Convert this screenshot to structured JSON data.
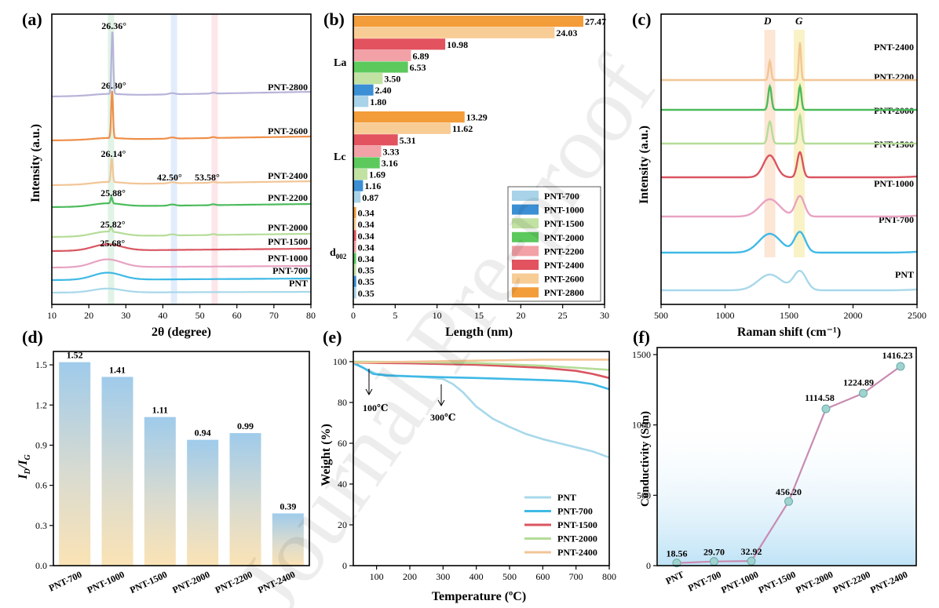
{
  "watermark": "Journal Pre-proof",
  "chart_data": [
    {
      "panel": "(a)",
      "type": "line",
      "title": "",
      "xlabel": "2θ (degree)",
      "ylabel": "Intensity (a.u.)",
      "xlim": [
        10,
        80
      ],
      "xticks": [
        10,
        20,
        30,
        40,
        50,
        60,
        70,
        80
      ],
      "series": [
        {
          "name": "PNT",
          "color": "#a8d8ea",
          "peak_label": ""
        },
        {
          "name": "PNT-700",
          "color": "#3fb9e6",
          "peak_label": ""
        },
        {
          "name": "PNT-1000",
          "color": "#e8a3c2",
          "peak_label": ""
        },
        {
          "name": "PNT-1500",
          "color": "#d95560",
          "peak_label": "25.68°"
        },
        {
          "name": "PNT-2000",
          "color": "#b5dc98",
          "peak_label": "25.82°"
        },
        {
          "name": "PNT-2200",
          "color": "#4cbb5c",
          "peak_label": "25.88°"
        },
        {
          "name": "PNT-2400",
          "color": "#f2c596",
          "peak_label": "26.14°"
        },
        {
          "name": "PNT-2600",
          "color": "#ef8f4a",
          "peak_label": "26.30°"
        },
        {
          "name": "PNT-2800",
          "color": "#b7b3d9",
          "peak_label": "26.36°"
        }
      ],
      "annotations": [
        "42.50°",
        "53.58°"
      ],
      "highlight_bands_deg": [
        26,
        43,
        54
      ]
    },
    {
      "panel": "(b)",
      "type": "bar",
      "orientation": "horizontal",
      "xlabel": "Length (nm)",
      "ylabel": "",
      "xlim": [
        0,
        30
      ],
      "xticks": [
        0,
        5,
        10,
        15,
        20,
        25,
        30
      ],
      "groups": [
        "La",
        "Lc",
        "d002"
      ],
      "group_labels": {
        "La": "La",
        "Lc": "Lc",
        "d_main": "d",
        "d_sub": "002"
      },
      "series": [
        {
          "name": "PNT-700",
          "color": "#a8d3e8",
          "values": [
            1.8,
            0.87,
            0.35
          ],
          "labels": [
            "1.80",
            "0.87",
            "0.35"
          ]
        },
        {
          "name": "PNT-1000",
          "color": "#3b8fd4",
          "values": [
            2.4,
            1.16,
            0.35
          ],
          "labels": [
            "2.40",
            "1.16",
            "0.35"
          ]
        },
        {
          "name": "PNT-1500",
          "color": "#c2e2a3",
          "values": [
            3.5,
            1.69,
            0.35
          ],
          "labels": [
            "3.50",
            "1.69",
            "0.35"
          ]
        },
        {
          "name": "PNT-2000",
          "color": "#5cc95c",
          "values": [
            6.53,
            3.16,
            0.34
          ],
          "labels": [
            "6.53",
            "3.16",
            "0.34"
          ]
        },
        {
          "name": "PNT-2200",
          "color": "#f2a1a6",
          "values": [
            6.89,
            3.33,
            0.34
          ],
          "labels": [
            "6.89",
            "3.33",
            "0.34"
          ]
        },
        {
          "name": "PNT-2400",
          "color": "#e2525f",
          "values": [
            10.98,
            5.31,
            0.34
          ],
          "labels": [
            "10.98",
            "5.31",
            "0.34"
          ]
        },
        {
          "name": "PNT-2600",
          "color": "#f8cc95",
          "values": [
            24.03,
            11.62,
            0.34
          ],
          "labels": [
            "24.03",
            "11.62",
            "0.34"
          ]
        },
        {
          "name": "PNT-2800",
          "color": "#f39c3a",
          "values": [
            27.47,
            13.29,
            0.34
          ],
          "labels": [
            "27.47",
            "13.29",
            "0.34"
          ]
        }
      ],
      "legend": "bottom-right"
    },
    {
      "panel": "(c)",
      "type": "line",
      "xlabel": "Raman shift (cm⁻¹)",
      "ylabel": "Intensity (a.u.)",
      "xlim": [
        500,
        2500
      ],
      "xticks": [
        500,
        1000,
        1500,
        2000,
        2500
      ],
      "band_labels": [
        "D",
        "G"
      ],
      "series": [
        {
          "name": "PNT",
          "color": "#a8d8ea"
        },
        {
          "name": "PNT-700",
          "color": "#3fb9e6"
        },
        {
          "name": "PNT-1000",
          "color": "#e8a3c2"
        },
        {
          "name": "PNT-1500",
          "color": "#d95560"
        },
        {
          "name": "PNT-2000",
          "color": "#b5dc98"
        },
        {
          "name": "PNT-2200",
          "color": "#4cbb5c"
        },
        {
          "name": "PNT-2400",
          "color": "#f2c596"
        }
      ]
    },
    {
      "panel": "(d)",
      "type": "bar",
      "xlabel": "",
      "ylabel_main": "I",
      "ylabel_sub1": "D",
      "ylabel_slash": "/I",
      "ylabel_sub2": "G",
      "ylim": [
        0,
        1.6
      ],
      "yticks": [
        "0.0",
        "0.3",
        "0.6",
        "0.9",
        "1.2",
        "1.5"
      ],
      "categories": [
        "PNT-700",
        "PNT-1000",
        "PNT-1500",
        "PNT-2000",
        "PNT-2200",
        "PNT-2400"
      ],
      "values": [
        1.52,
        1.41,
        1.11,
        0.94,
        0.99,
        0.39
      ],
      "labels": [
        "1.52",
        "1.41",
        "1.11",
        "0.94",
        "0.99",
        "0.39"
      ]
    },
    {
      "panel": "(e)",
      "type": "line",
      "xlabel": "Temperature (ºC)",
      "ylabel": "Weight (%)",
      "xlim": [
        30,
        800
      ],
      "xticks": [
        100,
        200,
        300,
        400,
        500,
        600,
        700,
        800
      ],
      "ylim": [
        0,
        105
      ],
      "yticks": [
        0,
        20,
        40,
        60,
        80,
        100
      ],
      "annotations": [
        "100℃",
        "300℃"
      ],
      "series": [
        {
          "name": "PNT",
          "color": "#a8d8ea",
          "x": [
            30,
            60,
            100,
            150,
            200,
            250,
            300,
            330,
            360,
            400,
            450,
            500,
            550,
            600,
            650,
            700,
            750,
            800
          ],
          "y": [
            99,
            97,
            94,
            93.3,
            92.8,
            92.3,
            91.5,
            89,
            85,
            78,
            72,
            68,
            64.5,
            62,
            60,
            58,
            56,
            53
          ]
        },
        {
          "name": "PNT-700",
          "color": "#3fb9e6",
          "x": [
            30,
            60,
            90,
            130,
            200,
            300,
            400,
            500,
            600,
            650,
            700,
            750,
            800
          ],
          "y": [
            99.5,
            97,
            94,
            93.2,
            92.8,
            92.4,
            92,
            91.5,
            91,
            90.7,
            90.2,
            89,
            86.5
          ]
        },
        {
          "name": "PNT-1500",
          "color": "#d95560",
          "x": [
            30,
            200,
            400,
            600,
            700,
            750,
            800
          ],
          "y": [
            99.5,
            99.2,
            98.5,
            97,
            95.5,
            94,
            92
          ]
        },
        {
          "name": "PNT-2000",
          "color": "#b5dc98",
          "x": [
            30,
            200,
            400,
            600,
            800
          ],
          "y": [
            100,
            99.8,
            99.3,
            98,
            96
          ]
        },
        {
          "name": "PNT-2400",
          "color": "#f2c596",
          "x": [
            30,
            200,
            400,
            600,
            800
          ],
          "y": [
            99.5,
            100,
            100.5,
            101,
            101
          ]
        }
      ],
      "legend": "bottom-right"
    },
    {
      "panel": "(f)",
      "type": "line",
      "xlabel": "",
      "ylabel": "Conductivity (S/m)",
      "ylim": [
        0,
        1550
      ],
      "yticks": [
        0,
        500,
        1000,
        1500
      ],
      "categories": [
        "PNT",
        "PNT-700",
        "PNT-1000",
        "PNT-1500",
        "PNT-2000",
        "PNT-2200",
        "PNT-2400"
      ],
      "values": [
        18.56,
        29.7,
        32.92,
        456.2,
        1114.58,
        1224.89,
        1416.23
      ],
      "labels": [
        "18.56",
        "29.70",
        "32.92",
        "456.20",
        "1114.58",
        "1224.89",
        "1416.23"
      ]
    }
  ]
}
